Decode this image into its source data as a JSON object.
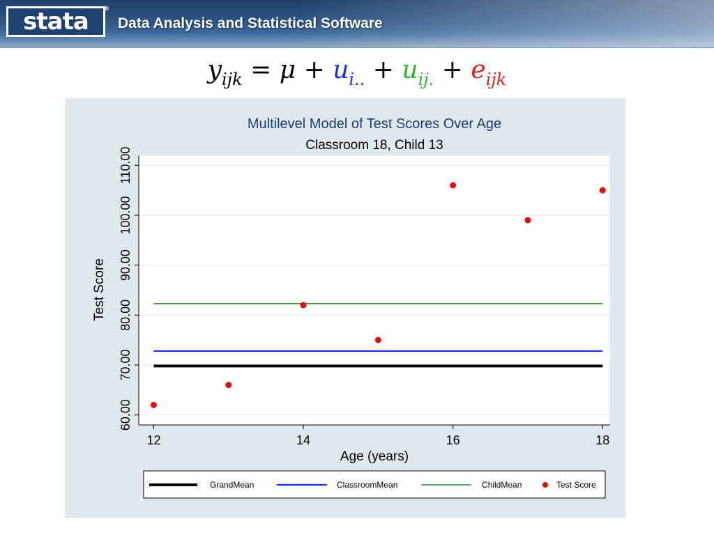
{
  "header": {
    "logo_text": "stata",
    "logo_mark": "®",
    "tagline": "Data Analysis and Statistical Software"
  },
  "equation": {
    "lhs": "y",
    "lhs_sub": "ijk",
    "eq": " = ",
    "mu": "μ",
    "plus": " + ",
    "t1": "u",
    "t1_sub": "i..",
    "t2": "u",
    "t2_sub": "ij.",
    "t3": "e",
    "t3_sub": "ijk",
    "colors": {
      "t1": "#1a2fd6",
      "t2": "#2fb52f",
      "t3": "#e02020"
    }
  },
  "chart_data": {
    "type": "scatter",
    "title": "Multilevel Model of Test Scores Over Age",
    "subtitle": "Classroom 18, Child 13",
    "xlabel": "Age (years)",
    "ylabel": "Test Score",
    "xlim": [
      11.8,
      18.1
    ],
    "ylim": [
      58,
      112
    ],
    "xticks": [
      12,
      14,
      16,
      18
    ],
    "yticks": [
      60,
      70,
      80,
      90,
      100,
      110
    ],
    "ytick_labels": [
      "60.00",
      "70.00",
      "80.00",
      "90.00",
      "100.00",
      "110.00"
    ],
    "grid": true,
    "legend_position": "bottom",
    "lines": [
      {
        "name": "GrandMean",
        "y": 69.8,
        "x": [
          12,
          18
        ],
        "color": "#000000"
      },
      {
        "name": "ClassroomMean",
        "y": 72.8,
        "x": [
          12,
          18
        ],
        "color": "#1a2fd6"
      },
      {
        "name": "ChildMean",
        "y": 82.3,
        "x": [
          12,
          18
        ],
        "color": "#2a8a2a"
      }
    ],
    "scatter": {
      "name": "Test Score",
      "color": "#e01010",
      "x": [
        12,
        13,
        14,
        15,
        16,
        17,
        18
      ],
      "y": [
        62,
        66,
        82,
        75,
        106,
        99,
        105
      ]
    }
  }
}
